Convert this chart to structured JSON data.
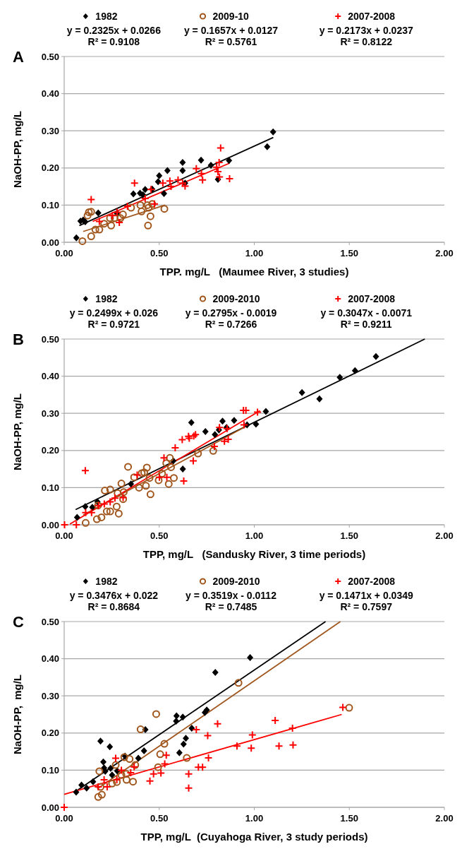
{
  "chart_data": [
    {
      "type": "scatter",
      "title": "A",
      "xlabel": "TPP. mg/L   (Maumee River, 3 studies)",
      "ylabel": "NaOH-PP, mg/L",
      "xlim": [
        0,
        2
      ],
      "ylim": [
        0,
        0.5
      ],
      "xticks": [
        {
          "value": 0,
          "label": "0.00"
        },
        {
          "value": 0.5,
          "label": "0.50"
        },
        {
          "value": 1,
          "label": "1.00"
        },
        {
          "value": 1.5,
          "label": "1.50"
        },
        {
          "value": 2,
          "label": "2.00"
        }
      ],
      "yticks": [
        {
          "value": 0,
          "label": "0.00"
        },
        {
          "value": 0.1,
          "label": "0.10"
        },
        {
          "value": 0.2,
          "label": "0.20"
        },
        {
          "value": 0.3,
          "label": "0.30"
        },
        {
          "value": 0.4,
          "label": "0.40"
        },
        {
          "value": 0.5,
          "label": "0.50"
        }
      ],
      "grid": "y",
      "legend": "top",
      "annotations": [
        "y = 0.2325x + 0.0266",
        "R² = 0.9108",
        "y = 0.1657x + 0.0127",
        "R² = 0.5761",
        "y = 0.2173x + 0.0237",
        "R² = 0.8122"
      ],
      "series": [
        {
          "type": "line",
          "color": "#000000",
          "marker": "none",
          "x": [
            0.08,
            1.1
          ],
          "values": [
            0.045,
            0.282
          ]
        },
        {
          "type": "line",
          "color": "#a0561c",
          "marker": "none",
          "x": [
            0.1,
            0.53
          ],
          "values": [
            0.029,
            0.1
          ]
        },
        {
          "type": "line",
          "color": "#ff0000",
          "marker": "none",
          "x": [
            0.15,
            0.87
          ],
          "values": [
            0.056,
            0.213
          ]
        },
        {
          "type": "scatter",
          "name": "1982",
          "color": "#000000",
          "marker": "diamond",
          "x": [
            0.064,
            0.086,
            0.111,
            0.1,
            0.179,
            0.278,
            0.364,
            0.399,
            0.414,
            0.426,
            0.463,
            0.494,
            0.5,
            0.525,
            0.543,
            0.623,
            0.623,
            0.636,
            0.72,
            0.772,
            0.809,
            0.867,
            1.068,
            1.099
          ],
          "values": [
            0.012,
            0.057,
            0.055,
            0.06,
            0.079,
            0.078,
            0.13,
            0.132,
            0.128,
            0.142,
            0.143,
            0.163,
            0.179,
            0.131,
            0.193,
            0.193,
            0.215,
            0.159,
            0.221,
            0.207,
            0.169,
            0.22,
            0.257,
            0.297
          ]
        },
        {
          "type": "scatter",
          "name": "2009-10",
          "color": "#a0561c",
          "marker": "circle",
          "x": [
            0.096,
            0.13,
            0.142,
            0.123,
            0.142,
            0.164,
            0.185,
            0.21,
            0.247,
            0.241,
            0.265,
            0.296,
            0.309,
            0.352,
            0.401,
            0.407,
            0.438,
            0.444,
            0.441,
            0.454,
            0.463,
            0.527
          ],
          "values": [
            0.003,
            0.081,
            0.082,
            0.072,
            0.016,
            0.034,
            0.034,
            0.05,
            0.045,
            0.065,
            0.065,
            0.065,
            0.075,
            0.093,
            0.1,
            0.083,
            0.1,
            0.093,
            0.045,
            0.07,
            0.103,
            0.09
          ]
        },
        {
          "type": "scatter",
          "name": "2007-2008",
          "color": "#ff0000",
          "marker": "cross",
          "x": [
            0.142,
            0.185,
            0.253,
            0.29,
            0.278,
            0.333,
            0.37,
            0.426,
            0.457,
            0.475,
            0.519,
            0.556,
            0.562,
            0.599,
            0.623,
            0.636,
            0.695,
            0.722,
            0.728,
            0.802,
            0.809,
            0.815,
            0.817,
            0.823,
            0.87
          ],
          "values": [
            0.115,
            0.056,
            0.072,
            0.053,
            0.081,
            0.097,
            0.159,
            0.118,
            0.142,
            0.103,
            0.159,
            0.165,
            0.15,
            0.168,
            0.159,
            0.151,
            0.198,
            0.185,
            0.168,
            0.202,
            0.19,
            0.215,
            0.176,
            0.254,
            0.171
          ]
        }
      ]
    },
    {
      "type": "scatter",
      "title": "B",
      "xlabel": "TPP, mg/L   (Sandusky River, 3 time periods)",
      "ylabel": "NaOH-PP, mg/L",
      "xlim": [
        0,
        2
      ],
      "ylim": [
        0,
        0.5
      ],
      "xticks": [
        {
          "value": 0,
          "label": "0.00"
        },
        {
          "value": 0.5,
          "label": "0.50"
        },
        {
          "value": 1,
          "label": "1.00"
        },
        {
          "value": 1.5,
          "label": "1.50"
        },
        {
          "value": 2,
          "label": "2.00"
        }
      ],
      "yticks": [
        {
          "value": 0,
          "label": "0.00"
        },
        {
          "value": 0.1,
          "label": "0.10"
        },
        {
          "value": 0.2,
          "label": "0.20"
        },
        {
          "value": 0.3,
          "label": "0.30"
        },
        {
          "value": 0.4,
          "label": "0.40"
        },
        {
          "value": 0.5,
          "label": "0.50"
        }
      ],
      "grid": "y",
      "legend": "top",
      "annotations": [
        "y = 0.2499x + 0.026",
        "R² = 0.9721",
        "y = 0.2795x - 0.0019",
        "R² = 0.7266",
        "y = 0.3047x - 0.0071",
        "R² = 0.9211"
      ],
      "series": [
        {
          "type": "line",
          "color": "#000000",
          "marker": "none",
          "x": [
            0.06,
            1.897
          ],
          "values": [
            0.041,
            0.5
          ]
        },
        {
          "type": "line",
          "color": "#a0561c",
          "marker": "none",
          "x": [
            0.1,
            0.97
          ],
          "values": [
            0.026,
            0.269
          ]
        },
        {
          "type": "line",
          "color": "#ff0000",
          "marker": "none",
          "x": [
            0.03,
            1.03
          ],
          "values": [
            0.002,
            0.307
          ]
        },
        {
          "type": "scatter",
          "name": "1982",
          "color": "#000000",
          "marker": "diamond",
          "x": [
            0.068,
            0.111,
            0.148,
            0.175,
            0.351,
            0.574,
            0.624,
            0.669,
            0.743,
            0.793,
            0.814,
            0.833,
            0.854,
            0.894,
            0.962,
            1.009,
            1.061,
            1.251,
            1.343,
            1.45,
            1.53,
            1.64
          ],
          "values": [
            0.02,
            0.049,
            0.047,
            0.062,
            0.11,
            0.172,
            0.15,
            0.275,
            0.251,
            0.243,
            0.255,
            0.279,
            0.262,
            0.281,
            0.269,
            0.271,
            0.305,
            0.356,
            0.339,
            0.397,
            0.415,
            0.453
          ]
        },
        {
          "type": "scatter",
          "name": "2009-2010",
          "color": "#a0561c",
          "marker": "circle",
          "x": [
            0.113,
            0.172,
            0.196,
            0.178,
            0.214,
            0.242,
            0.224,
            0.242,
            0.276,
            0.281,
            0.287,
            0.301,
            0.313,
            0.31,
            0.336,
            0.368,
            0.394,
            0.408,
            0.421,
            0.43,
            0.435,
            0.449,
            0.454,
            0.497,
            0.515,
            0.537,
            0.55,
            0.556,
            0.562,
            0.577,
            0.704,
            0.784
          ],
          "values": [
            0.005,
            0.015,
            0.02,
            0.052,
            0.092,
            0.095,
            0.036,
            0.036,
            0.049,
            0.085,
            0.03,
            0.111,
            0.088,
            0.069,
            0.156,
            0.128,
            0.1,
            0.139,
            0.141,
            0.105,
            0.154,
            0.126,
            0.082,
            0.12,
            0.138,
            0.166,
            0.11,
            0.18,
            0.155,
            0.126,
            0.192,
            0.199
          ]
        },
        {
          "type": "scatter",
          "name": "2007-2008",
          "color": "#ff0000",
          "marker": "cross",
          "x": [
            0.002,
            0.064,
            0.111,
            0.113,
            0.144,
            0.181,
            0.211,
            0.242,
            0.267,
            0.31,
            0.384,
            0.501,
            0.525,
            0.54,
            0.584,
            0.621,
            0.629,
            0.654,
            0.658,
            0.679,
            0.682,
            0.691,
            0.79,
            0.817,
            0.843,
            0.863,
            0.857,
            0.943,
            0.956,
            0.946,
            1.017
          ],
          "values": [
            0,
            0,
            0.146,
            0.033,
            0.033,
            0.052,
            0.056,
            0.062,
            0.072,
            0.073,
            0.134,
            0.128,
            0.18,
            0.128,
            0.207,
            0.229,
            0.118,
            0.238,
            0.233,
            0.172,
            0.239,
            0.243,
            0.211,
            0.262,
            0.225,
            0.23,
            0.259,
            0.308,
            0.308,
            0.269,
            0.303
          ]
        }
      ]
    },
    {
      "type": "scatter",
      "title": "C",
      "xlabel": "TPP, mg/L  (Cuyahoga River, 3 study periods)",
      "ylabel": "NaOH-PP,  mg/L",
      "xlim": [
        0,
        2
      ],
      "ylim": [
        0,
        0.5
      ],
      "xticks": [
        {
          "value": 0,
          "label": "0.00"
        },
        {
          "value": 0.5,
          "label": "0.50"
        },
        {
          "value": 1,
          "label": "1.00"
        },
        {
          "value": 1.5,
          "label": "1.50"
        },
        {
          "value": 2,
          "label": "2.00"
        }
      ],
      "yticks": [
        {
          "value": 0,
          "label": "0.00"
        },
        {
          "value": 0.1,
          "label": "0.10"
        },
        {
          "value": 0.2,
          "label": "0.20"
        },
        {
          "value": 0.3,
          "label": "0.30"
        },
        {
          "value": 0.4,
          "label": "0.40"
        },
        {
          "value": 0.5,
          "label": "0.50"
        }
      ],
      "grid": "y",
      "legend": "top",
      "annotations": [
        "y = 0.3476x + 0.022",
        "R² = 0.8684",
        "y = 0.3519x - 0.0112",
        "R² = 0.7485",
        "y = 0.1471x + 0.0349",
        "R² = 0.7597"
      ],
      "series": [
        {
          "type": "line",
          "color": "#000000",
          "marker": "none",
          "x": [
            0.07,
            1.375
          ],
          "values": [
            0.046,
            0.5
          ]
        },
        {
          "type": "line",
          "color": "#a0561c",
          "marker": "none",
          "x": [
            0.18,
            1.453
          ],
          "values": [
            0.052,
            0.5
          ]
        },
        {
          "type": "line",
          "color": "#ff0000",
          "marker": "none",
          "x": [
            0,
            1.46
          ],
          "values": [
            0.035,
            0.25
          ]
        },
        {
          "type": "scatter",
          "name": "1982",
          "color": "#000000",
          "marker": "diamond",
          "x": [
            0.063,
            0.091,
            0.118,
            0.152,
            0.191,
            0.206,
            0.21,
            0.216,
            0.24,
            0.244,
            0.252,
            0.279,
            0.32,
            0.39,
            0.427,
            0.42,
            0.591,
            0.589,
            0.606,
            0.624,
            0.628,
            0.64,
            0.671,
            0.74,
            0.75,
            0.795,
            0.978
          ],
          "values": [
            0.041,
            0.06,
            0.052,
            0.069,
            0.178,
            0.122,
            0.106,
            0.097,
            0.163,
            0.105,
            0.087,
            0.098,
            0.138,
            0.132,
            0.209,
            0.152,
            0.246,
            0.232,
            0.147,
            0.243,
            0.17,
            0.186,
            0.213,
            0.255,
            0.262,
            0.363,
            0.403
          ]
        },
        {
          "type": "scatter",
          "name": "2009-2010",
          "color": "#a0561c",
          "marker": "circle",
          "x": [
            0.179,
            0.198,
            0.185,
            0.191,
            0.252,
            0.271,
            0.277,
            0.301,
            0.316,
            0.326,
            0.328,
            0.344,
            0.362,
            0.374,
            0.402,
            0.484,
            0.494,
            0.505,
            0.527,
            0.645,
            0.917,
            1.499
          ],
          "values": [
            0.028,
            0.034,
            0.097,
            0.055,
            0.064,
            0.114,
            0.068,
            0.087,
            0.135,
            0.09,
            0.074,
            0.13,
            0.069,
            0.114,
            0.21,
            0.251,
            0.108,
            0.143,
            0.171,
            0.133,
            0.335,
            0.268
          ]
        },
        {
          "type": "scatter",
          "name": "2007-2008",
          "color": "#ff0000",
          "marker": "cross",
          "x": [
            0,
            0.179,
            0.21,
            0.226,
            0.271,
            0.277,
            0.301,
            0.35,
            0.368,
            0.451,
            0.47,
            0.509,
            0.529,
            0.537,
            0.655,
            0.655,
            0.695,
            0.706,
            0.728,
            0.755,
            0.759,
            0.807,
            0.909,
            0.984,
            0.99,
            1.11,
            1.13,
            1.201,
            1.204,
            1.466
          ],
          "values": [
            0,
            0.055,
            0.074,
            0.055,
            0.132,
            0.074,
            0.1,
            0.093,
            0.109,
            0.071,
            0.09,
            0.092,
            0.117,
            0.14,
            0.09,
            0.052,
            0.209,
            0.108,
            0.108,
            0.193,
            0.133,
            0.225,
            0.165,
            0.159,
            0.195,
            0.234,
            0.165,
            0.213,
            0.168,
            0.269
          ]
        }
      ]
    }
  ]
}
